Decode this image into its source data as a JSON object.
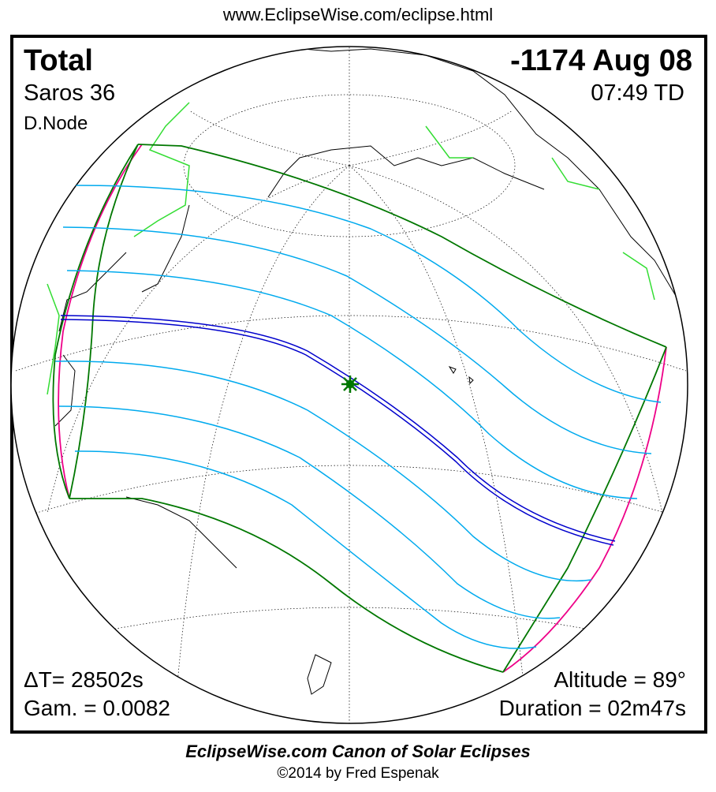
{
  "header": {
    "url": "www.EclipseWise.com/eclipse.html"
  },
  "eclipse": {
    "type": "Total",
    "date": "-1174 Aug 08",
    "saros": "Saros  36",
    "time": "07:49 TD",
    "node": "D.Node",
    "delta_t": "ΔT=  28502s",
    "gamma": "Gam. = 0.0082",
    "altitude": "Altitude = 89°",
    "duration": "Duration = 02m47s"
  },
  "footer": {
    "title": "EclipseWise.com Canon of Solar Eclipses",
    "copyright": "©2014 by Fred Espenak"
  },
  "colors": {
    "central_line": "#0000cc",
    "penumbral_lines": "#00aaee",
    "penumbral_limits": "#007700",
    "rise_set_curves": "#ee0088",
    "borders": "#33dd33",
    "greatest_eclipse_marker": "#007700"
  },
  "icons": {
    "greatest_eclipse": "star-marker-icon"
  }
}
